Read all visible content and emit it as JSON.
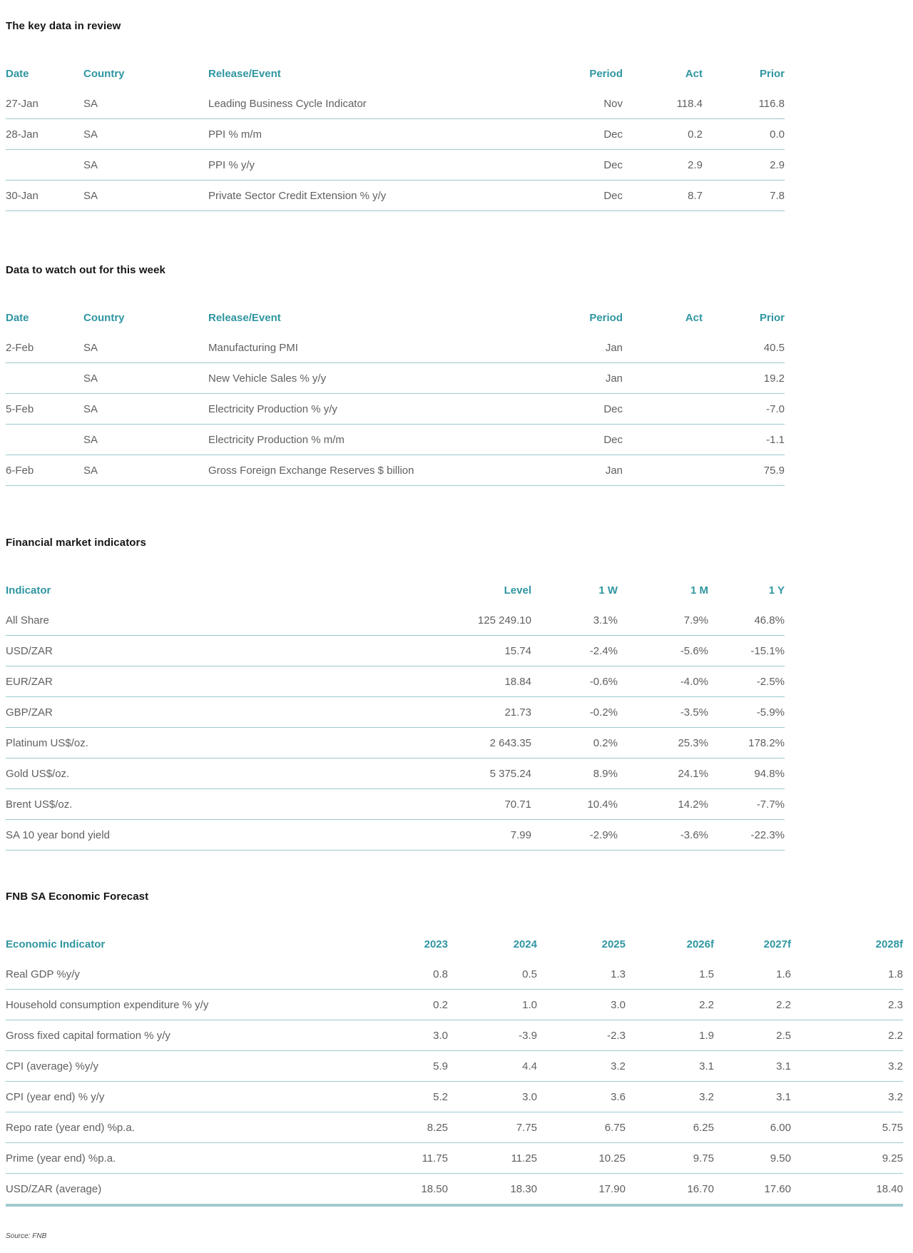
{
  "page": {
    "source_note": "Source: FNB"
  },
  "colors": {
    "header_teal": "#2F96A1",
    "row_line_teal": "#9CC9CE",
    "body_text_gray": "#5F6062",
    "title_black": "#161616"
  },
  "sections": [
    {
      "title": "The key data in review",
      "headers": [
        "Date",
        "Country",
        "Release/Event",
        "Period",
        "Act",
        "Prior"
      ],
      "rows": [
        [
          "27-Jan",
          "SA",
          "Leading Business Cycle Indicator",
          "Nov",
          "118.4",
          "116.8"
        ],
        [
          "28-Jan",
          "SA",
          "PPI % m/m",
          "Dec",
          "0.2",
          "0.0"
        ],
        [
          "",
          "SA",
          "PPI % y/y",
          "Dec",
          "2.9",
          "2.9"
        ],
        [
          "30-Jan",
          "SA",
          "Private Sector Credit Extension % y/y",
          "Dec",
          "8.7",
          "7.8"
        ]
      ]
    },
    {
      "title": "Data to watch out for this week",
      "headers": [
        "Date",
        "Country",
        "Release/Event",
        "Period",
        "Act",
        "Prior"
      ],
      "rows": [
        [
          "2-Feb",
          "SA",
          "Manufacturing PMI",
          "Jan",
          "",
          "40.5"
        ],
        [
          "",
          "SA",
          "New Vehicle Sales % y/y",
          "Jan",
          "",
          "19.2"
        ],
        [
          "5-Feb",
          "SA",
          "Electricity Production % y/y",
          "Dec",
          "",
          "-7.0"
        ],
        [
          "",
          "SA",
          "Electricity Production % m/m",
          "Dec",
          "",
          "-1.1"
        ],
        [
          "6-Feb",
          "SA",
          "Gross Foreign Exchange Reserves $ billion",
          "Jan",
          "",
          "75.9"
        ]
      ]
    },
    {
      "title": "Financial market indicators",
      "headers": [
        "Indicator",
        "Level",
        "1 W",
        "1 M",
        "1 Y"
      ],
      "rows": [
        [
          "All Share",
          "125 249.10",
          "3.1%",
          "7.9%",
          "46.8%"
        ],
        [
          "USD/ZAR",
          "15.74",
          "-2.4%",
          "-5.6%",
          "-15.1%"
        ],
        [
          "EUR/ZAR",
          "18.84",
          "-0.6%",
          "-4.0%",
          "-2.5%"
        ],
        [
          "GBP/ZAR",
          "21.73",
          "-0.2%",
          "-3.5%",
          "-5.9%"
        ],
        [
          "Platinum US$/oz.",
          "2 643.35",
          "0.2%",
          "25.3%",
          "178.2%"
        ],
        [
          "Gold US$/oz.",
          "5 375.24",
          "8.9%",
          "24.1%",
          "94.8%"
        ],
        [
          "Brent US$/oz.",
          "70.71",
          "10.4%",
          "14.2%",
          "-7.7%"
        ],
        [
          "SA 10 year bond yield",
          "7.99",
          "-2.9%",
          "-3.6%",
          "-22.3%"
        ]
      ]
    },
    {
      "title": "FNB SA Economic Forecast",
      "headers": [
        "Economic Indicator",
        "2023",
        "2024",
        "2025",
        "2026f",
        "2027f",
        "2028f"
      ],
      "rows": [
        [
          "Real GDP %y/y",
          "0.8",
          "0.5",
          "1.3",
          "1.5",
          "1.6",
          "1.8"
        ],
        [
          "Household consumption expenditure % y/y",
          "0.2",
          "1.0",
          "3.0",
          "2.2",
          "2.2",
          "2.3"
        ],
        [
          "Gross fixed capital formation % y/y",
          "3.0",
          "-3.9",
          "-2.3",
          "1.9",
          "2.5",
          "2.2"
        ],
        [
          "CPI (average) %y/y",
          "5.9",
          "4.4",
          "3.2",
          "3.1",
          "3.1",
          "3.2"
        ],
        [
          "CPI (year end) % y/y",
          "5.2",
          "3.0",
          "3.6",
          "3.2",
          "3.1",
          "3.2"
        ],
        [
          "Repo rate (year end) %p.a.",
          "8.25",
          "7.75",
          "6.75",
          "6.25",
          "6.00",
          "5.75"
        ],
        [
          "Prime (year end) %p.a.",
          "11.75",
          "11.25",
          "10.25",
          "9.75",
          "9.50",
          "9.25"
        ],
        [
          "USD/ZAR (average)",
          "18.50",
          "18.30",
          "17.90",
          "16.70",
          "17.60",
          "18.40"
        ]
      ]
    }
  ]
}
